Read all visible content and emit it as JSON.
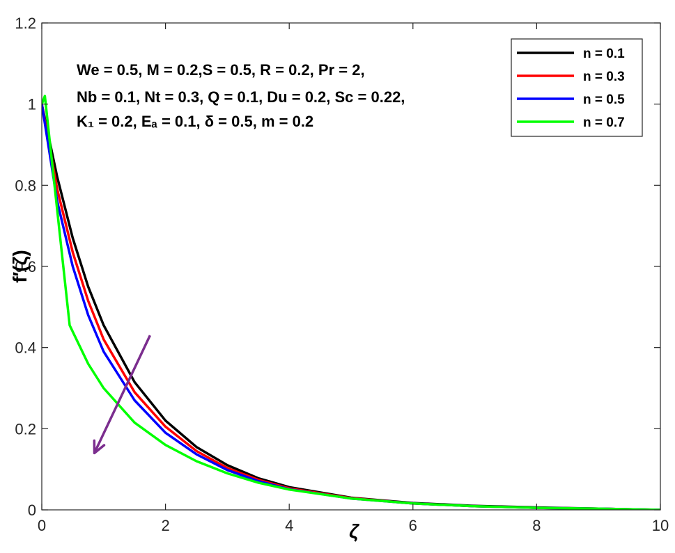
{
  "chart_data": {
    "type": "line",
    "title": "",
    "xlabel": "ζ",
    "ylabel": "f′(ζ)",
    "xlim": [
      0,
      10
    ],
    "ylim": [
      0,
      1.2
    ],
    "xticks": [
      0,
      2,
      4,
      6,
      8,
      10
    ],
    "yticks": [
      0,
      0.2,
      0.4,
      0.6,
      0.8,
      1,
      1.2
    ],
    "xtick_labels": [
      "0",
      "2",
      "4",
      "6",
      "8",
      "10"
    ],
    "ytick_labels": [
      "0",
      "0.2",
      "0.4",
      "0.6",
      "0.8",
      "1",
      "1.2"
    ],
    "grid": false,
    "legend_position": "top-right",
    "annotation_lines": [
      "We = 0.5, M = 0.2,S = 0.5, R = 0.2, Pr = 2,",
      "Nb = 0.1, Nt = 0.3, Q = 0.1, Du = 0.2, Sc = 0.22,",
      "K₁ = 0.2, Eₐ = 0.1, δ = 0.5, m = 0.2"
    ],
    "arrow": {
      "from": [
        1.75,
        0.43
      ],
      "to": [
        0.85,
        0.14
      ],
      "color": "#7B2D8E"
    },
    "series": [
      {
        "name": "n = 0.1",
        "color": "#000000",
        "x": [
          0,
          0.25,
          0.5,
          0.75,
          1,
          1.5,
          2,
          2.5,
          3,
          3.5,
          4,
          5,
          6,
          7,
          8,
          9,
          10
        ],
        "y": [
          1.0,
          0.82,
          0.67,
          0.55,
          0.455,
          0.315,
          0.22,
          0.155,
          0.11,
          0.078,
          0.056,
          0.03,
          0.017,
          0.01,
          0.006,
          0.003,
          0.0
        ]
      },
      {
        "name": "n = 0.3",
        "color": "#FF0000",
        "x": [
          0,
          0.25,
          0.5,
          0.75,
          1,
          1.5,
          2,
          2.5,
          3,
          3.5,
          4,
          5,
          6,
          7,
          8,
          9,
          10
        ],
        "y": [
          1.0,
          0.79,
          0.635,
          0.515,
          0.42,
          0.29,
          0.205,
          0.145,
          0.103,
          0.074,
          0.053,
          0.029,
          0.016,
          0.009,
          0.005,
          0.003,
          0.0
        ]
      },
      {
        "name": "n = 0.5",
        "color": "#0000FF",
        "x": [
          0,
          0.25,
          0.5,
          0.75,
          1,
          1.5,
          2,
          2.5,
          3,
          3.5,
          4,
          5,
          6,
          7,
          8,
          9,
          10
        ],
        "y": [
          1.0,
          0.76,
          0.6,
          0.48,
          0.39,
          0.27,
          0.19,
          0.137,
          0.098,
          0.071,
          0.051,
          0.028,
          0.016,
          0.009,
          0.005,
          0.003,
          0.0
        ]
      },
      {
        "name": "n = 0.7",
        "color": "#00FF00",
        "x": [
          0,
          0.05,
          0.45,
          0.75,
          1,
          1.5,
          2,
          2.5,
          3,
          3.5,
          4,
          5,
          6,
          7,
          8,
          9,
          10
        ],
        "y": [
          1.0,
          1.02,
          0.455,
          0.36,
          0.3,
          0.215,
          0.16,
          0.12,
          0.09,
          0.067,
          0.05,
          0.028,
          0.016,
          0.009,
          0.005,
          0.003,
          0.0
        ]
      }
    ]
  }
}
